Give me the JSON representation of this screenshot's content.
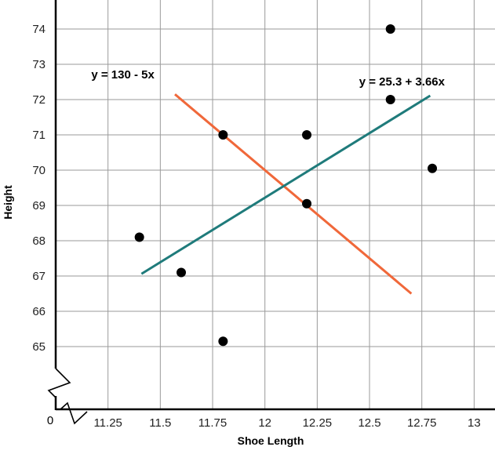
{
  "chart_data": {
    "type": "scatter",
    "title": "",
    "xlabel": "Shoe Length",
    "ylabel": "Height",
    "xlim": [
      11.0,
      13.1
    ],
    "ylim": [
      63.2,
      74.8
    ],
    "grid": true,
    "axis_break": true,
    "origin_label": "0",
    "x_ticks": [
      11.25,
      11.5,
      11.75,
      12,
      12.25,
      12.5,
      12.75,
      13
    ],
    "x_tick_labels": [
      "11.25",
      "11.5",
      "11.75",
      "12",
      "12.25",
      "12.5",
      "12.75",
      "13"
    ],
    "y_ticks": [
      65,
      66,
      67,
      68,
      69,
      70,
      71,
      72,
      73,
      74
    ],
    "y_tick_labels": [
      "65",
      "66",
      "67",
      "68",
      "69",
      "70",
      "71",
      "72",
      "73",
      "74"
    ],
    "points": [
      {
        "x": 11.4,
        "y": 68.1
      },
      {
        "x": 11.6,
        "y": 67.1
      },
      {
        "x": 11.8,
        "y": 71.0
      },
      {
        "x": 11.8,
        "y": 65.15
      },
      {
        "x": 12.2,
        "y": 71.0
      },
      {
        "x": 12.2,
        "y": 69.05
      },
      {
        "x": 12.6,
        "y": 74.0
      },
      {
        "x": 12.6,
        "y": 72.0
      },
      {
        "x": 12.8,
        "y": 70.05
      }
    ],
    "lines": [
      {
        "label": "y = 130 - 5x",
        "intercept": 130,
        "slope": -5,
        "x_range": [
          11.57,
          12.7
        ],
        "color": "#f0683a",
        "label_pos": {
          "x": 11.17,
          "y": 72.6
        }
      },
      {
        "label": "y = 25.3 + 3.66x",
        "intercept": 25.3,
        "slope": 3.66,
        "x_range": [
          11.41,
          12.79
        ],
        "color": "#1f7b7b",
        "label_pos": {
          "x": 12.45,
          "y": 72.4
        }
      }
    ],
    "point_color": "#000000"
  }
}
